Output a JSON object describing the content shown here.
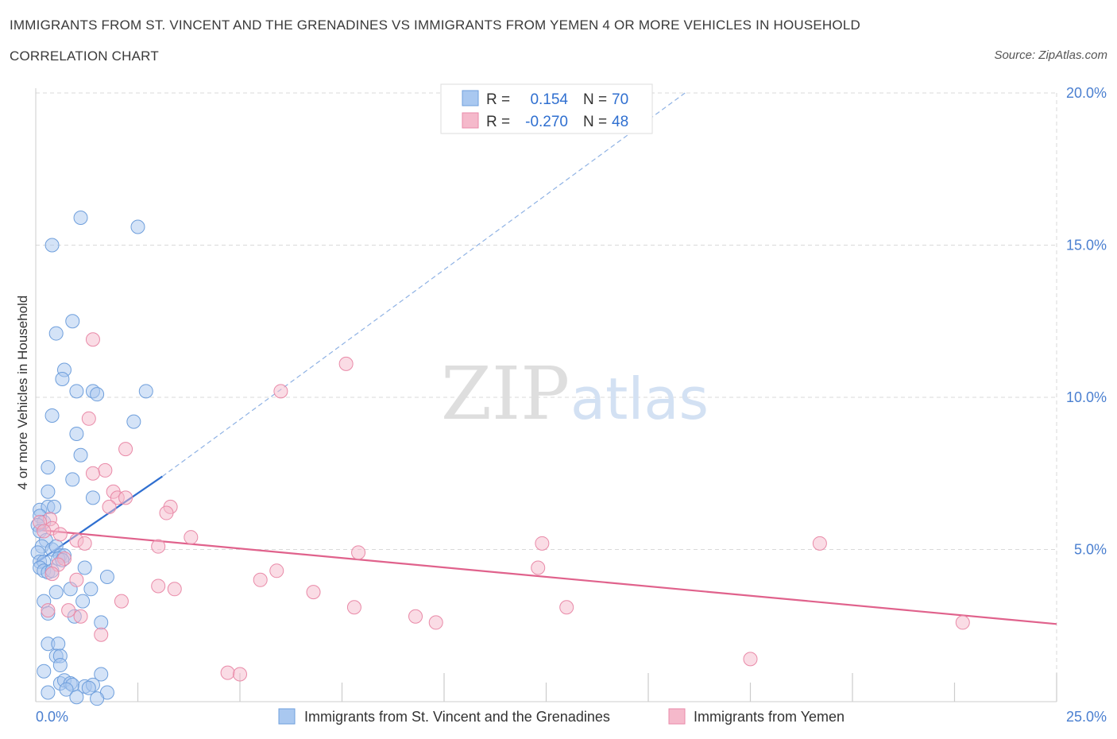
{
  "header": {
    "title": "IMMIGRANTS FROM ST. VINCENT AND THE GRENADINES VS IMMIGRANTS FROM YEMEN 4 OR MORE VEHICLES IN HOUSEHOLD",
    "subtitle": "CORRELATION CHART",
    "source": "Source: ZipAtlas.com"
  },
  "watermark": {
    "zip": "ZIP",
    "atlas": "atlas"
  },
  "colors": {
    "blue_fill": "#a9c8f0",
    "blue_stroke": "#6f9fdc",
    "blue_line": "#2f6fd0",
    "pink_fill": "#f5b9cb",
    "pink_stroke": "#e98aa8",
    "pink_line": "#e0628c",
    "axis_text": "#4a7fd0",
    "grid": "#d9d9d9"
  },
  "chart_data": {
    "type": "scatter",
    "title": "IMMIGRANTS FROM ST. VINCENT AND THE GRENADINES VS IMMIGRANTS FROM YEMEN 4 OR MORE VEHICLES IN HOUSEHOLD",
    "xlabel": "",
    "ylabel": "4 or more Vehicles in Household",
    "xlim": [
      0,
      25
    ],
    "ylim": [
      0,
      20
    ],
    "x_tick_labels": [
      {
        "value": 0,
        "label": "0.0%"
      },
      {
        "value": 25,
        "label": "25.0%"
      }
    ],
    "y_ticks": [
      {
        "value": 5,
        "label": "5.0%"
      },
      {
        "value": 10,
        "label": "10.0%"
      },
      {
        "value": 15,
        "label": "15.0%"
      },
      {
        "value": 20,
        "label": "20.0%"
      }
    ],
    "grid": true,
    "legend_position": "top-center",
    "series": [
      {
        "name": "Immigrants from St. Vincent and the Grenadines",
        "color": "blue",
        "R": "0.154",
        "N": "70",
        "trend": {
          "x0": 0,
          "y0": 4.55,
          "x1": 3.1,
          "y1": 7.4,
          "dash_x1": 15.9,
          "dash_y1": 20.0
        },
        "points": [
          [
            1.1,
            15.9
          ],
          [
            2.5,
            15.6
          ],
          [
            0.4,
            15.0
          ],
          [
            0.9,
            12.5
          ],
          [
            0.5,
            12.1
          ],
          [
            0.7,
            10.9
          ],
          [
            0.65,
            10.6
          ],
          [
            1.0,
            10.2
          ],
          [
            1.4,
            10.2
          ],
          [
            1.5,
            10.1
          ],
          [
            2.7,
            10.2
          ],
          [
            0.4,
            9.4
          ],
          [
            2.4,
            9.2
          ],
          [
            1.0,
            8.8
          ],
          [
            1.1,
            8.1
          ],
          [
            0.3,
            7.7
          ],
          [
            0.9,
            7.3
          ],
          [
            0.3,
            6.9
          ],
          [
            1.4,
            6.7
          ],
          [
            0.1,
            6.3
          ],
          [
            0.3,
            6.4
          ],
          [
            0.45,
            6.4
          ],
          [
            0.1,
            6.1
          ],
          [
            0.2,
            5.9
          ],
          [
            0.05,
            5.8
          ],
          [
            0.1,
            5.6
          ],
          [
            0.25,
            5.3
          ],
          [
            0.15,
            5.1
          ],
          [
            0.4,
            5.0
          ],
          [
            0.5,
            5.1
          ],
          [
            0.05,
            4.9
          ],
          [
            0.6,
            4.8
          ],
          [
            0.7,
            4.8
          ],
          [
            0.1,
            4.6
          ],
          [
            0.2,
            4.6
          ],
          [
            0.55,
            4.7
          ],
          [
            0.65,
            4.65
          ],
          [
            0.1,
            4.4
          ],
          [
            0.2,
            4.3
          ],
          [
            0.3,
            4.25
          ],
          [
            0.4,
            4.3
          ],
          [
            1.2,
            4.4
          ],
          [
            1.75,
            4.1
          ],
          [
            0.85,
            3.7
          ],
          [
            1.35,
            3.7
          ],
          [
            0.5,
            3.6
          ],
          [
            0.2,
            3.3
          ],
          [
            1.15,
            3.3
          ],
          [
            0.3,
            2.9
          ],
          [
            0.95,
            2.8
          ],
          [
            1.6,
            2.6
          ],
          [
            0.3,
            1.9
          ],
          [
            0.55,
            1.9
          ],
          [
            0.5,
            1.5
          ],
          [
            0.6,
            1.5
          ],
          [
            0.6,
            1.2
          ],
          [
            1.6,
            0.9
          ],
          [
            0.2,
            1.0
          ],
          [
            0.6,
            0.6
          ],
          [
            0.7,
            0.7
          ],
          [
            0.85,
            0.6
          ],
          [
            0.9,
            0.55
          ],
          [
            1.2,
            0.5
          ],
          [
            1.4,
            0.55
          ],
          [
            1.3,
            0.45
          ],
          [
            1.75,
            0.3
          ],
          [
            0.3,
            0.3
          ],
          [
            0.75,
            0.4
          ],
          [
            1.5,
            0.1
          ],
          [
            1.0,
            0.15
          ]
        ]
      },
      {
        "name": "Immigrants from Yemen",
        "color": "pink",
        "R": "-0.270",
        "N": "48",
        "trend": {
          "x0": 0,
          "y0": 5.65,
          "x1": 25.0,
          "y1": 2.55
        },
        "points": [
          [
            1.4,
            11.9
          ],
          [
            7.6,
            11.1
          ],
          [
            6.0,
            10.2
          ],
          [
            1.3,
            9.3
          ],
          [
            2.2,
            8.3
          ],
          [
            1.7,
            7.6
          ],
          [
            1.4,
            7.5
          ],
          [
            1.9,
            6.9
          ],
          [
            2.0,
            6.7
          ],
          [
            2.2,
            6.7
          ],
          [
            1.8,
            6.4
          ],
          [
            3.3,
            6.4
          ],
          [
            3.2,
            6.2
          ],
          [
            0.35,
            6.0
          ],
          [
            0.1,
            5.9
          ],
          [
            0.4,
            5.7
          ],
          [
            0.2,
            5.6
          ],
          [
            0.6,
            5.5
          ],
          [
            3.8,
            5.4
          ],
          [
            1.0,
            5.3
          ],
          [
            1.2,
            5.2
          ],
          [
            3.0,
            5.1
          ],
          [
            12.4,
            5.2
          ],
          [
            19.2,
            5.2
          ],
          [
            7.9,
            4.9
          ],
          [
            0.7,
            4.7
          ],
          [
            0.55,
            4.5
          ],
          [
            12.3,
            4.4
          ],
          [
            0.4,
            4.2
          ],
          [
            5.9,
            4.3
          ],
          [
            5.5,
            4.0
          ],
          [
            1.0,
            4.0
          ],
          [
            3.0,
            3.8
          ],
          [
            3.4,
            3.7
          ],
          [
            6.8,
            3.6
          ],
          [
            2.1,
            3.3
          ],
          [
            7.8,
            3.1
          ],
          [
            13.0,
            3.1
          ],
          [
            0.3,
            3.0
          ],
          [
            0.8,
            3.0
          ],
          [
            1.1,
            2.8
          ],
          [
            9.3,
            2.8
          ],
          [
            9.8,
            2.6
          ],
          [
            22.7,
            2.6
          ],
          [
            1.6,
            2.2
          ],
          [
            17.5,
            1.4
          ],
          [
            4.7,
            0.95
          ],
          [
            5.0,
            0.9
          ]
        ]
      }
    ]
  }
}
